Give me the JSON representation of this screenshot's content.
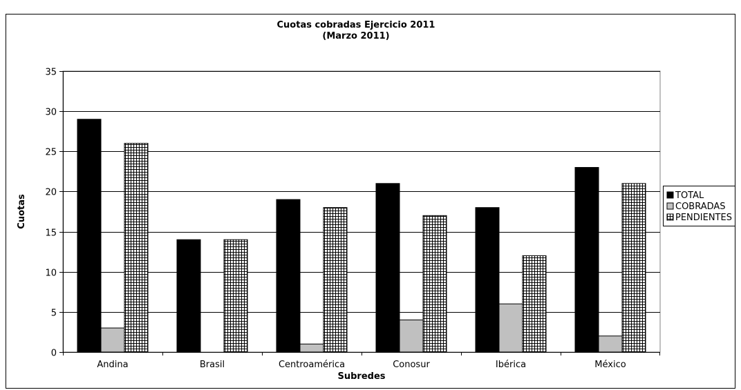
{
  "chart_data": {
    "type": "bar",
    "title": "Cuotas cobradas Ejercicio 2011",
    "subtitle": "(Marzo 2011)",
    "xlabel": "Subredes",
    "ylabel": "Cuotas",
    "ylim": [
      0,
      35
    ],
    "yticks": [
      0,
      5,
      10,
      15,
      20,
      25,
      30,
      35
    ],
    "grid": true,
    "legend_position": "right",
    "categories": [
      "Andina",
      "Brasil",
      "Centroamérica",
      "Conosur",
      "Ibérica",
      "México"
    ],
    "series": [
      {
        "name": "TOTAL",
        "values": [
          29,
          14,
          19,
          21,
          18,
          23
        ],
        "fill": "#000000",
        "pattern": "solid"
      },
      {
        "name": "COBRADAS",
        "values": [
          3,
          0,
          1,
          4,
          6,
          2
        ],
        "fill": "#c0c0c0",
        "pattern": "solid"
      },
      {
        "name": "PENDIENTES",
        "values": [
          26,
          14,
          18,
          17,
          12,
          21
        ],
        "fill": "#ffffff",
        "pattern": "grid"
      }
    ]
  }
}
